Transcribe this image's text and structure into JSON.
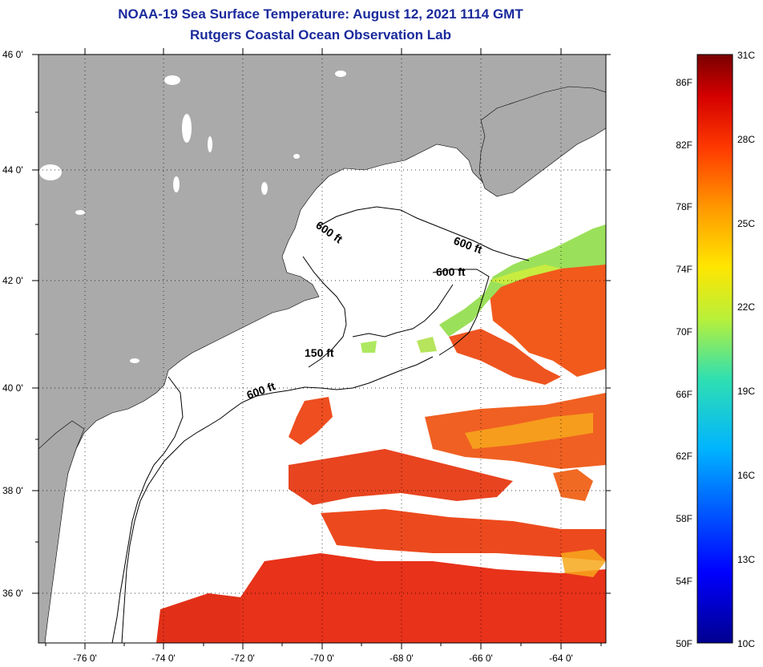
{
  "header": {
    "title": "NOAA-19 Sea Surface Temperature:  August 12, 2021 1114 GMT",
    "subtitle": "Rutgers Coastal Ocean Observation Lab"
  },
  "axes": {
    "lat_labels": [
      "46 0'",
      "44 0'",
      "42 0'",
      "40 0'",
      "38 0'",
      "36 0'"
    ],
    "lon_labels": [
      "-76 0'",
      "-74 0'",
      "-72 0'",
      "-70 0'",
      "-68 0'",
      "-66 0'",
      "-64 0'"
    ]
  },
  "contours": [
    {
      "label": "600 ft"
    },
    {
      "label": "600 ft"
    },
    {
      "label": "600 ft"
    },
    {
      "label": "150 ft"
    },
    {
      "label": "600 ft"
    }
  ],
  "colorbar": {
    "fahrenheit": [
      "86F",
      "82F",
      "78F",
      "74F",
      "70F",
      "66F",
      "62F",
      "58F",
      "54F",
      "50F"
    ],
    "celsius": [
      "31C",
      "28C",
      "25C",
      "22C",
      "19C",
      "16C",
      "13C",
      "10C"
    ]
  },
  "colors": {
    "land": "#aaaaaa",
    "title": "#1a2a9c",
    "warm_water": "#e8401a",
    "cool_water": "#9be05a"
  }
}
